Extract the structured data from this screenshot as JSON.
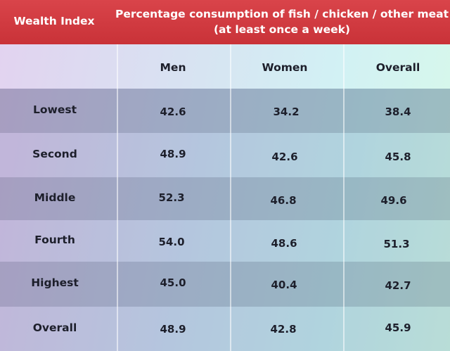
{
  "chart_data": {
    "type": "table",
    "header_left": "Wealth Index",
    "title_line1": "Percentage consumption of fish / chicken / other meat",
    "title_line2": "(at least once a week)",
    "columns": [
      "Men",
      "Women",
      "Overall"
    ],
    "rows": [
      {
        "label": "Lowest",
        "values": [
          "42.6",
          "34.2",
          "38.4"
        ]
      },
      {
        "label": "Second",
        "values": [
          "48.9",
          "42.6",
          "45.8"
        ]
      },
      {
        "label": "Middle",
        "values": [
          "52.3",
          "46.8",
          "49.6"
        ]
      },
      {
        "label": "Fourth",
        "values": [
          "54.0",
          "48.6",
          "51.3"
        ]
      },
      {
        "label": "Highest",
        "values": [
          "45.0",
          "40.4",
          "42.7"
        ]
      },
      {
        "label": "Overall",
        "values": [
          "48.9",
          "42.8",
          "45.9"
        ]
      }
    ]
  },
  "colors": {
    "header_band": "#d0363c",
    "header_text": "#ffffff",
    "body_text": "#1d1f2b"
  }
}
